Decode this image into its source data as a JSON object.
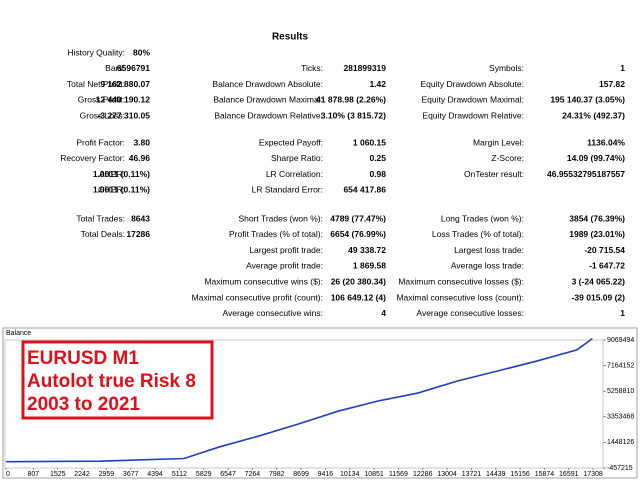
{
  "title": "Results",
  "sections": [
    [
      [
        [
          "History Quality:",
          "80%"
        ],
        null,
        null
      ],
      [
        [
          "Bars:",
          "6596791"
        ],
        [
          "Ticks:",
          "281899319"
        ],
        [
          "Symbols:",
          "1"
        ]
      ],
      [
        [
          "Total Net Profit:",
          "9 162 880.07"
        ],
        [
          "Balance Drawdown Absolute:",
          "1.42"
        ],
        [
          "Equity Drawdown Absolute:",
          "157.82"
        ]
      ],
      [
        [
          "Gross Profit:",
          "12 440 190.12"
        ],
        [
          "Balance Drawdown Maximal:",
          "41 878.98 (2.26%)"
        ],
        [
          "Equity Drawdown Maximal:",
          "195 140.37 (3.05%)"
        ]
      ],
      [
        [
          "Gross Loss:",
          "-3 277 310.05"
        ],
        [
          "Balance Drawdown Relative:",
          "3.10% (3 815.72)"
        ],
        [
          "Equity Drawdown Relative:",
          "24.31% (492.37)"
        ]
      ]
    ],
    [
      [
        [
          "Profit Factor:",
          "3.80"
        ],
        [
          "Expected Payoff:",
          "1 060.15"
        ],
        [
          "Margin Level:",
          "1136.04%"
        ]
      ],
      [
        [
          "Recovery Factor:",
          "46.96"
        ],
        [
          "Sharpe Ratio:",
          "0.25"
        ],
        [
          "Z-Score:",
          "14.09 (99.74%)"
        ]
      ],
      [
        [
          "AHPR:",
          "1.0011 (0.11%)"
        ],
        [
          "LR Correlation:",
          "0.98"
        ],
        [
          "OnTester result:",
          "46.95532795187557"
        ]
      ],
      [
        [
          "GHPR:",
          "1.0011 (0.11%)"
        ],
        [
          "LR Standard Error:",
          "654 417.86"
        ],
        null
      ]
    ],
    [
      [
        [
          "Total Trades:",
          "8643"
        ],
        [
          "Short Trades (won %):",
          "4789 (77.47%)"
        ],
        [
          "Long Trades (won %):",
          "3854 (76.39%)"
        ]
      ],
      [
        [
          "Total Deals:",
          "17286"
        ],
        [
          "Profit Trades (% of total):",
          "6654 (76.99%)"
        ],
        [
          "Loss Trades (% of total):",
          "1989 (23.01%)"
        ]
      ],
      [
        null,
        [
          "Largest profit trade:",
          "49 338.72"
        ],
        [
          "Largest loss trade:",
          "-20 715.54"
        ]
      ],
      [
        null,
        [
          "Average profit trade:",
          "1 869.58"
        ],
        [
          "Average loss trade:",
          "-1 647.72"
        ]
      ],
      [
        null,
        [
          "Maximum consecutive wins ($):",
          "26 (20 380.34)"
        ],
        [
          "Maximum consecutive losses ($):",
          "3 (-24 065.22)"
        ]
      ],
      [
        null,
        [
          "Maximal consecutive profit (count):",
          "106 649.12 (4)"
        ],
        [
          "Maximal consecutive loss (count):",
          "-39 015.09 (2)"
        ]
      ],
      [
        null,
        [
          "Average consecutive wins:",
          "4"
        ],
        [
          "Average consecutive losses:",
          "1"
        ]
      ]
    ]
  ],
  "chart_data": {
    "type": "line",
    "title": "Balance",
    "annotation": [
      "EURUSD M1",
      "Autolot true Risk 8",
      "2003 to 2021"
    ],
    "x": [
      0,
      2757,
      5250,
      6276,
      7450,
      8620,
      9800,
      10970,
      12140,
      13310,
      14490,
      15660,
      16830,
      17286
    ],
    "values": [
      10000,
      50000,
      250000,
      1100000,
      1920000,
      2820000,
      3780000,
      4530000,
      5120000,
      6020000,
      6760000,
      7510000,
      8330000,
      9172880
    ],
    "color": "#1f3fc0",
    "xlim": [
      0,
      17600
    ],
    "ylim": [
      -457215,
      9069494
    ],
    "xticks": [
      0,
      807,
      1525,
      2242,
      2959,
      3677,
      4394,
      5112,
      5829,
      6547,
      7264,
      7982,
      8699,
      9416,
      10134,
      10851,
      11569,
      12286,
      13004,
      13721,
      14439,
      15156,
      15874,
      16591,
      17308
    ],
    "yticks": [
      9069494,
      7164152,
      5258810,
      3353468,
      1448126,
      -457215
    ]
  }
}
